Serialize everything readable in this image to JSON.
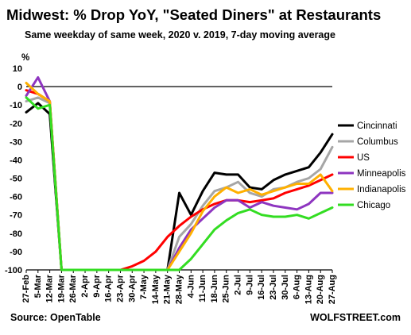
{
  "header": {
    "title": "Midwest: % Drop YoY, \"Seated Diners\" at Restaurants",
    "subtitle": "Same weekday of same week, 2020 v. 2019, 7-day moving average"
  },
  "footer": {
    "source": "Source: OpenTable",
    "brand": "WOLFSTREET.com"
  },
  "chart_data": {
    "type": "line",
    "title": "Midwest: % Drop YoY, \"Seated Diners\" at Restaurants",
    "subtitle": "Same weekday of same week, 2020 v. 2019, 7-day moving average",
    "ylabel": "%",
    "ylim": [
      -100,
      10
    ],
    "yticks": [
      10,
      0,
      -10,
      -20,
      -30,
      -40,
      -50,
      -60,
      -70,
      -80,
      -90,
      -100
    ],
    "grid": false,
    "zero_line": true,
    "legend_position": "right",
    "x_tick_labels": [
      "27-Feb",
      "5-Mar",
      "12-Mar",
      "19-Mar",
      "26-Mar",
      "2-Apr",
      "9-Apr",
      "16-Apr",
      "23-Apr",
      "30-Apr",
      "7-May",
      "14-May",
      "21-May",
      "28-May",
      "4-Jun",
      "11-Jun",
      "18-Jun",
      "25-Jun",
      "2-Jul",
      "9-Jul",
      "16-Jul",
      "23-Jul",
      "30-Jul",
      "6-Aug",
      "13-Aug",
      "20-Aug",
      "27-Aug"
    ],
    "series": [
      {
        "name": "Cincinnati",
        "color": "#000000",
        "values": [
          -14,
          -9,
          -15,
          -100,
          -100,
          -100,
          -100,
          -100,
          -100,
          -100,
          -100,
          -100,
          -100,
          -58,
          -70,
          -57,
          -47,
          -48,
          -48,
          -55,
          -56,
          -51,
          -48,
          -46,
          -44,
          -36,
          -26
        ]
      },
      {
        "name": "Columbus",
        "color": "#a6a6a6",
        "values": [
          -8,
          -6,
          -9,
          -100,
          -100,
          -100,
          -100,
          -100,
          -100,
          -100,
          -100,
          -100,
          -100,
          -82,
          -75,
          -65,
          -57,
          -55,
          -52,
          -58,
          -60,
          -56,
          -55,
          -52,
          -50,
          -45,
          -33
        ]
      },
      {
        "name": "US",
        "color": "#ff0000",
        "values": [
          -2,
          -4,
          -8,
          -100,
          -100,
          -100,
          -100,
          -100,
          -100,
          -98,
          -95,
          -90,
          -82,
          -76,
          -71,
          -67,
          -64,
          -62,
          -62,
          -63,
          -62,
          -61,
          -58,
          -56,
          -54,
          -51,
          -48
        ]
      },
      {
        "name": "Minneapolis",
        "color": "#8e35c0",
        "values": [
          -5,
          5,
          -8,
          -100,
          -100,
          -100,
          -100,
          -100,
          -100,
          -100,
          -100,
          -100,
          -100,
          -88,
          -78,
          -72,
          -66,
          -62,
          -62,
          -66,
          -63,
          -65,
          -66,
          -67,
          -64,
          -58,
          -58
        ]
      },
      {
        "name": "Indianapolis",
        "color": "#ffb000",
        "values": [
          2,
          -4,
          -8,
          -100,
          -100,
          -100,
          -100,
          -100,
          -100,
          -100,
          -100,
          -100,
          -100,
          -90,
          -80,
          -68,
          -60,
          -55,
          -58,
          -56,
          -59,
          -57,
          -55,
          -53,
          -53,
          -48,
          -57
        ]
      },
      {
        "name": "Chicago",
        "color": "#33dd22",
        "values": [
          -6,
          -12,
          -10,
          -100,
          -100,
          -100,
          -100,
          -100,
          -100,
          -100,
          -100,
          -100,
          -100,
          -100,
          -94,
          -86,
          -78,
          -73,
          -69,
          -67,
          -70,
          -71,
          -71,
          -70,
          -72,
          -69,
          -66
        ]
      }
    ]
  }
}
